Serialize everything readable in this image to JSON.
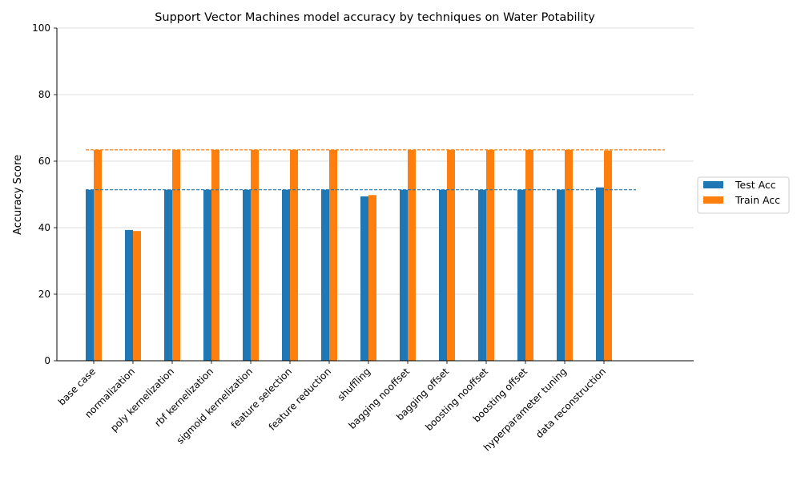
{
  "chart_data": {
    "type": "bar",
    "title": "Support Vector Machines model accuracy by techniques on Water Potability",
    "xlabel": "",
    "ylabel": "Accuracy Score",
    "ylim": [
      0,
      100
    ],
    "yticks": [
      0,
      20,
      40,
      60,
      80,
      100
    ],
    "grid": "horizontal",
    "legend_position": "right",
    "categories": [
      "base case",
      "normalization",
      "poly kernelization",
      "rbf kernelization",
      "sigmoid kernelization",
      "feature selection",
      "feature reduction",
      "shuffling",
      "bagging nooffset",
      "bagging offset",
      "boosting nooffset",
      "boosting offset",
      "hyperparameter tuning",
      "data reconstruction"
    ],
    "series": [
      {
        "name": "Test Acc",
        "color": "#1f77b4",
        "values": [
          51.4,
          39.3,
          51.4,
          51.4,
          51.4,
          51.4,
          51.4,
          49.4,
          51.4,
          51.4,
          51.4,
          51.4,
          51.4,
          52.1
        ],
        "reference_line": 51.4
      },
      {
        "name": "Train Acc",
        "color": "#ff7f0e",
        "values": [
          63.4,
          39.0,
          63.4,
          63.4,
          63.4,
          63.4,
          63.4,
          49.8,
          63.4,
          63.4,
          63.4,
          63.4,
          63.4,
          63.2
        ],
        "reference_line": 63.4
      }
    ]
  }
}
